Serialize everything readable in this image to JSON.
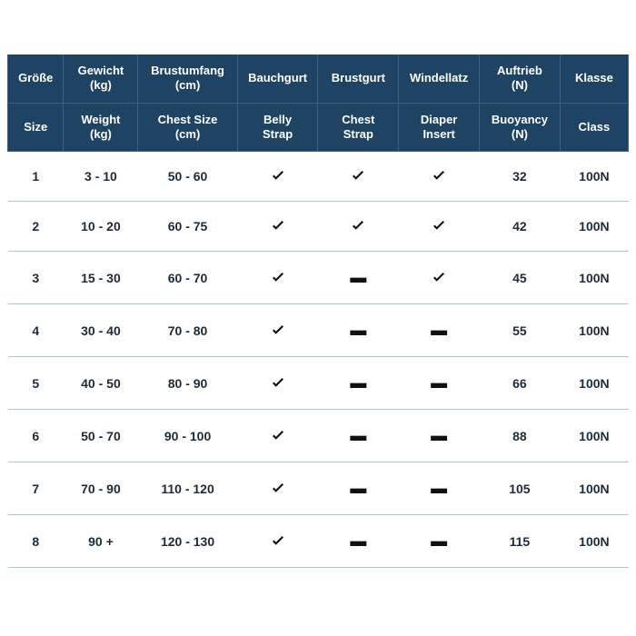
{
  "type": "table",
  "colors": {
    "header_bg": "#1f4362",
    "header_fg": "#ffffff",
    "row_text": "#1c2b3a",
    "row_border": "#9fd0cf",
    "page_bg": "#ffffff"
  },
  "header_de": {
    "size": "Größe",
    "weight": "Gewicht",
    "weight_unit": "(kg)",
    "chest": "Brustumfang",
    "chest_unit": "(cm)",
    "belly": "Bauchgurt",
    "cheststrap": "Brustgurt",
    "diaper": "Windellatz",
    "buoyancy": "Auftrieb",
    "buoyancy_unit": "(N)",
    "class": "Klasse"
  },
  "header_en": {
    "size": "Size",
    "weight": "Weight",
    "weight_unit": "(kg)",
    "chest": "Chest Size",
    "chest_unit": "(cm)",
    "belly": "Belly",
    "belly2": "Strap",
    "cheststrap": "Chest",
    "cheststrap2": "Strap",
    "diaper": "Diaper",
    "diaper2": "Insert",
    "buoyancy": "Buoyancy",
    "buoyancy_unit": "(N)",
    "class": "Class"
  },
  "columns": [
    "size",
    "weight",
    "chest",
    "belly",
    "cheststrap",
    "diaper",
    "buoyancy",
    "class"
  ],
  "rows": [
    {
      "size": "1",
      "weight": "3 - 10",
      "chest": "50 - 60",
      "belly": true,
      "cheststrap": true,
      "diaper": true,
      "buoyancy": "32",
      "class": "100N"
    },
    {
      "size": "2",
      "weight": "10 - 20",
      "chest": "60 - 75",
      "belly": true,
      "cheststrap": true,
      "diaper": true,
      "buoyancy": "42",
      "class": "100N"
    },
    {
      "size": "3",
      "weight": "15 - 30",
      "chest": "60 - 70",
      "belly": true,
      "cheststrap": false,
      "diaper": true,
      "buoyancy": "45",
      "class": "100N"
    },
    {
      "size": "4",
      "weight": "30 - 40",
      "chest": "70 - 80",
      "belly": true,
      "cheststrap": false,
      "diaper": false,
      "buoyancy": "55",
      "class": "100N"
    },
    {
      "size": "5",
      "weight": "40 - 50",
      "chest": "80 - 90",
      "belly": true,
      "cheststrap": false,
      "diaper": false,
      "buoyancy": "66",
      "class": "100N"
    },
    {
      "size": "6",
      "weight": "50 - 70",
      "chest": "90 - 100",
      "belly": true,
      "cheststrap": false,
      "diaper": false,
      "buoyancy": "88",
      "class": "100N"
    },
    {
      "size": "7",
      "weight": "70 - 90",
      "chest": "110 - 120",
      "belly": true,
      "cheststrap": false,
      "diaper": false,
      "buoyancy": "105",
      "class": "100N"
    },
    {
      "size": "8",
      "weight": "90 +",
      "chest": "120 - 130",
      "belly": true,
      "cheststrap": false,
      "diaper": false,
      "buoyancy": "115",
      "class": "100N"
    }
  ],
  "icons": {
    "check": "check-icon",
    "dash": "dash-icon"
  }
}
